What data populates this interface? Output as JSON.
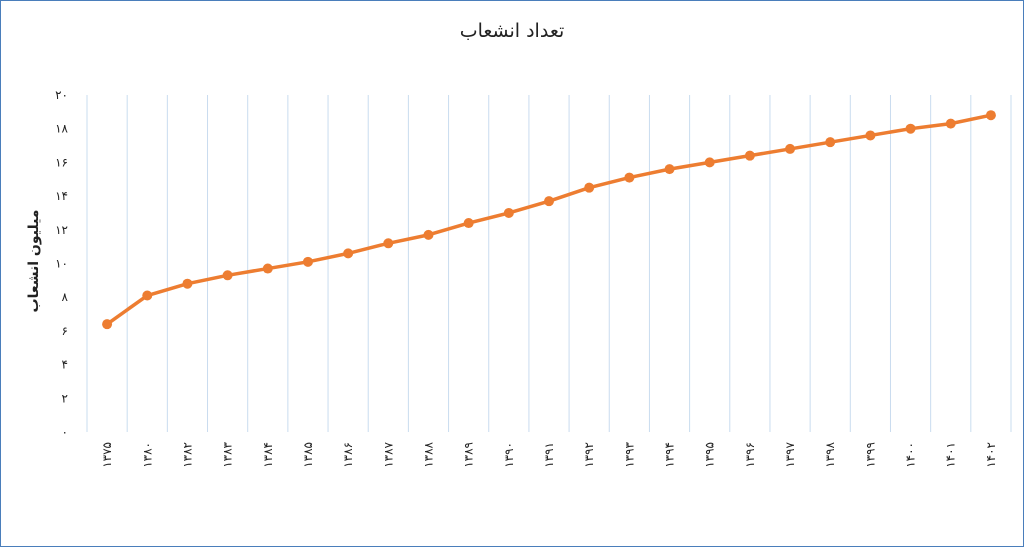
{
  "chart_data": {
    "type": "line",
    "title": "تعداد انشعاب",
    "ylabel": "میلیون انشعاب",
    "xlabel": "",
    "ylim": [
      0,
      20
    ],
    "y_ticks": [
      "۰",
      "۲",
      "۴",
      "۶",
      "۸",
      "۱۰",
      "۱۲",
      "۱۴",
      "۱۶",
      "۱۸",
      "۲۰"
    ],
    "y_tick_values": [
      0,
      2,
      4,
      6,
      8,
      10,
      12,
      14,
      16,
      18,
      20
    ],
    "categories": [
      "۱۳۷۵",
      "۱۳۸۰",
      "۱۳۸۲",
      "۱۳۸۳",
      "۱۳۸۴",
      "۱۳۸۵",
      "۱۳۸۶",
      "۱۳۸۷",
      "۱۳۸۸",
      "۱۳۸۹",
      "۱۳۹۰",
      "۱۳۹۱",
      "۱۳۹۲",
      "۱۳۹۳",
      "۱۳۹۴",
      "۱۳۹۵",
      "۱۳۹۶",
      "۱۳۹۷",
      "۱۳۹۸",
      "۱۳۹۹",
      "۱۴۰۰",
      "۱۴۰۱",
      "۱۴۰۲"
    ],
    "series": [
      {
        "name": "",
        "color": "#ed7d31",
        "values": [
          6.4,
          8.1,
          8.8,
          9.3,
          9.7,
          10.1,
          10.6,
          11.2,
          11.7,
          12.4,
          13.0,
          13.7,
          14.5,
          15.1,
          15.6,
          16.0,
          16.4,
          16.8,
          17.2,
          17.6,
          18.0,
          18.3,
          18.8
        ]
      }
    ],
    "grid": "vertical",
    "grid_color": "#c9dcef",
    "legend": "none"
  }
}
